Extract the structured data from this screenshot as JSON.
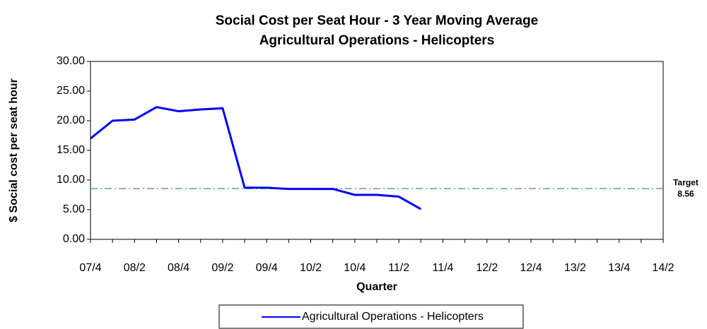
{
  "chart_data": {
    "type": "line",
    "title": "Social Cost per Seat Hour - 3 Year Moving Average",
    "subtitle": "Agricultural Operations - Helicopters",
    "x_label": "Quarter",
    "y_label": "$ Social cost per seat hour",
    "categories": [
      "07/4",
      null,
      "08/2",
      null,
      "08/4",
      null,
      "09/2",
      null,
      "09/4",
      null,
      "10/2",
      null,
      "10/4",
      null,
      "11/2",
      null,
      "11/4",
      null,
      "12/2",
      null,
      "12/4",
      null,
      "13/2",
      null,
      "13/4",
      null,
      "14/2"
    ],
    "series": [
      {
        "name": "Agricultural Operations - Helicopters",
        "color": "#0000ff",
        "values": [
          17.0,
          20.0,
          20.2,
          22.3,
          21.6,
          21.9,
          22.1,
          8.7,
          8.7,
          8.5,
          8.5,
          8.5,
          7.5,
          7.5,
          7.2,
          5.1,
          null,
          null,
          null,
          null,
          null,
          null,
          null,
          null,
          null,
          null,
          null
        ]
      }
    ],
    "target": {
      "label": "Target",
      "value": 8.56,
      "color": "#339966"
    },
    "ylim": [
      0,
      30
    ],
    "yticks": [
      {
        "value": 0,
        "label": "0.00"
      },
      {
        "value": 5,
        "label": "5.00"
      },
      {
        "value": 10,
        "label": "10.00"
      },
      {
        "value": 15,
        "label": "15.00"
      },
      {
        "value": 20,
        "label": "20.00"
      },
      {
        "value": 25,
        "label": "25.00"
      },
      {
        "value": 30,
        "label": "30.00"
      }
    ],
    "grid": false,
    "legend": "bottom"
  }
}
